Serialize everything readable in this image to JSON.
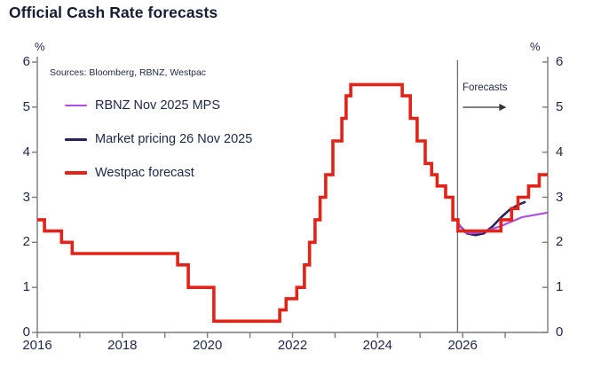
{
  "title": "Official Cash Rate forecasts",
  "sources": "Sources: Bloomberg, RBNZ, Westpac",
  "axis": {
    "left_unit": "%",
    "right_unit": "%"
  },
  "forecast_divider": {
    "label": "Forecasts",
    "position_year": 2025.88
  },
  "colors": {
    "title_text": "#171c33",
    "label_text": "#1e2745",
    "axis_line": "#7a7a7a",
    "divider_line": "#6e6e6e",
    "arrow": "#333333",
    "rbnz_purple": "#ac4fe3",
    "market_navy": "#252359",
    "westpac_red": "#e2231a"
  },
  "chart_data": {
    "type": "line",
    "title": "Official Cash Rate forecasts",
    "xlabel": "",
    "ylabel": "%",
    "x_range": [
      2016,
      2028
    ],
    "y_range": [
      0,
      6
    ],
    "x_ticks_labeled": [
      2016,
      2018,
      2020,
      2022,
      2024,
      2026
    ],
    "x_ticks_minor": [
      2017,
      2019,
      2021,
      2023,
      2025,
      2027
    ],
    "y_ticks": [
      0,
      1,
      2,
      3,
      4,
      5,
      6
    ],
    "grid": false,
    "legend_position": "top-left",
    "forecast_start_year": 2025.88,
    "series": [
      {
        "name": "RBNZ Nov 2025 MPS",
        "color": "#ac4fe3",
        "style": "line",
        "stroke_width": 2.2,
        "z_index": 2,
        "points": [
          [
            2025.88,
            2.45
          ],
          [
            2026.05,
            2.22
          ],
          [
            2026.2,
            2.2
          ],
          [
            2026.45,
            2.22
          ],
          [
            2026.9,
            2.36
          ],
          [
            2027.4,
            2.56
          ],
          [
            2028.0,
            2.66
          ]
        ]
      },
      {
        "name": "Market pricing 26 Nov 2025",
        "color": "#252359",
        "style": "line",
        "stroke_width": 2.6,
        "z_index": 1,
        "points": [
          [
            2025.88,
            2.42
          ],
          [
            2026.1,
            2.2
          ],
          [
            2026.3,
            2.16
          ],
          [
            2026.5,
            2.2
          ],
          [
            2026.7,
            2.35
          ],
          [
            2026.9,
            2.55
          ],
          [
            2027.1,
            2.72
          ],
          [
            2027.3,
            2.83
          ],
          [
            2027.48,
            2.9
          ]
        ]
      },
      {
        "name": "Westpac forecast",
        "color": "#e2231a",
        "style": "step",
        "stroke_width": 3.6,
        "z_index": 3,
        "points": [
          [
            2016.0,
            2.5
          ],
          [
            2016.17,
            2.25
          ],
          [
            2016.57,
            2.0
          ],
          [
            2016.82,
            1.75
          ],
          [
            2019.3,
            1.5
          ],
          [
            2019.55,
            1.0
          ],
          [
            2020.15,
            0.25
          ],
          [
            2021.7,
            0.5
          ],
          [
            2021.85,
            0.75
          ],
          [
            2022.1,
            1.0
          ],
          [
            2022.28,
            1.5
          ],
          [
            2022.4,
            2.0
          ],
          [
            2022.53,
            2.5
          ],
          [
            2022.65,
            3.0
          ],
          [
            2022.78,
            3.5
          ],
          [
            2022.95,
            4.25
          ],
          [
            2023.16,
            4.75
          ],
          [
            2023.26,
            5.25
          ],
          [
            2023.37,
            5.5
          ],
          [
            2024.58,
            5.25
          ],
          [
            2024.77,
            4.75
          ],
          [
            2024.93,
            4.25
          ],
          [
            2025.12,
            3.75
          ],
          [
            2025.27,
            3.5
          ],
          [
            2025.4,
            3.25
          ],
          [
            2025.6,
            3.0
          ],
          [
            2025.77,
            2.5
          ],
          [
            2025.89,
            2.25
          ],
          [
            2026.9,
            2.5
          ],
          [
            2027.15,
            2.75
          ],
          [
            2027.3,
            3.0
          ],
          [
            2027.55,
            3.25
          ],
          [
            2027.8,
            3.5
          ],
          [
            2028.0,
            3.5
          ]
        ]
      }
    ]
  }
}
